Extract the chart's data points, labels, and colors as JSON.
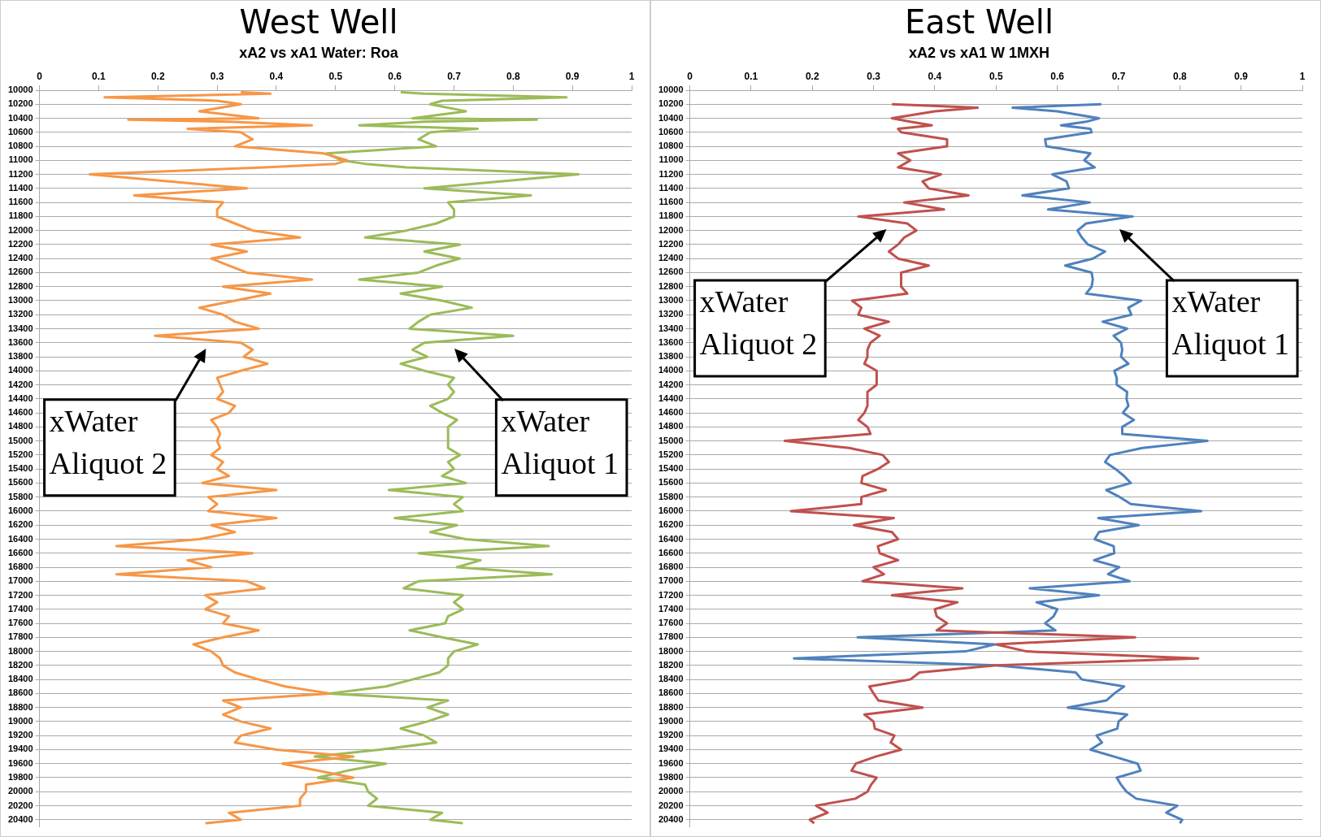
{
  "chart_data": [
    {
      "type": "line",
      "title": "West Well",
      "subtitle": "xA2 vs xA1 Water: Roa",
      "xlim": [
        0,
        1
      ],
      "xticks": [
        0,
        0.1,
        0.2,
        0.3,
        0.4,
        0.5,
        0.6,
        0.7,
        0.8,
        0.9,
        1
      ],
      "ylim": [
        20500,
        10000
      ],
      "yticks": [
        10000,
        10200,
        10400,
        10600,
        10800,
        11000,
        11200,
        11400,
        11600,
        11800,
        12000,
        12200,
        12400,
        12600,
        12800,
        13000,
        13200,
        13400,
        13600,
        13800,
        14000,
        14200,
        14400,
        14600,
        14800,
        15000,
        15200,
        15400,
        15600,
        15800,
        16000,
        16200,
        16400,
        16600,
        16800,
        17000,
        17200,
        17400,
        17600,
        17800,
        18000,
        18200,
        18400,
        18600,
        18800,
        19000,
        19200,
        19400,
        19600,
        19800,
        20000,
        20200,
        20400
      ],
      "grid": "y",
      "legend": false,
      "marker": "none",
      "line_style": "solid",
      "series": [
        {
          "color": "#f79646",
          "x": [
            0.34,
            0.39,
            0.11,
            0.3,
            0.34,
            0.27,
            0.37,
            0.15,
            0.32,
            0.46,
            0.25,
            0.34,
            0.36,
            0.33,
            0.48,
            0.52,
            0.5,
            0.38,
            0.085,
            0.35,
            0.16,
            0.31,
            0.3,
            0.3,
            0.33,
            0.36,
            0.44,
            0.29,
            0.35,
            0.29,
            0.32,
            0.35,
            0.46,
            0.31,
            0.39,
            0.33,
            0.27,
            0.31,
            0.33,
            0.37,
            0.195,
            0.34,
            0.36,
            0.345,
            0.385,
            0.34,
            0.3,
            0.305,
            0.31,
            0.3,
            0.33,
            0.32,
            0.29,
            0.3,
            0.305,
            0.3,
            0.305,
            0.29,
            0.31,
            0.3,
            0.32,
            0.275,
            0.4,
            0.285,
            0.3,
            0.285,
            0.4,
            0.29,
            0.33,
            0.27,
            0.13,
            0.36,
            0.25,
            0.29,
            0.13,
            0.35,
            0.38,
            0.28,
            0.3,
            0.28,
            0.32,
            0.31,
            0.37,
            0.31,
            0.26,
            0.29,
            0.305,
            0.31,
            0.33,
            0.37,
            0.415,
            0.49,
            0.31,
            0.34,
            0.31,
            0.34,
            0.39,
            0.34,
            0.33,
            0.4,
            0.53,
            0.41,
            0.47,
            0.53,
            0.45,
            0.45,
            0.44,
            0.44,
            0.32,
            0.34,
            0.28
          ],
          "values": [
            10030,
            10050,
            10100,
            10150,
            10200,
            10300,
            10400,
            10420,
            10450,
            10500,
            10550,
            10600,
            10700,
            10800,
            10900,
            11000,
            11050,
            11100,
            11200,
            11400,
            11500,
            11600,
            11700,
            11800,
            11900,
            12000,
            12100,
            12200,
            12300,
            12400,
            12500,
            12600,
            12700,
            12800,
            12900,
            13000,
            13100,
            13200,
            13300,
            13400,
            13500,
            13600,
            13700,
            13800,
            13900,
            14000,
            14100,
            14200,
            14300,
            14400,
            14500,
            14600,
            14700,
            14800,
            14900,
            15000,
            15100,
            15200,
            15300,
            15400,
            15500,
            15600,
            15700,
            15800,
            15900,
            16000,
            16100,
            16200,
            16300,
            16400,
            16500,
            16600,
            16700,
            16800,
            16900,
            17000,
            17100,
            17200,
            17300,
            17400,
            17500,
            17600,
            17700,
            17800,
            17900,
            18000,
            18100,
            18200,
            18300,
            18400,
            18500,
            18600,
            18700,
            18800,
            18900,
            19000,
            19100,
            19200,
            19300,
            19400,
            19500,
            19600,
            19700,
            19800,
            19900,
            20000,
            20100,
            20200,
            20300,
            20400,
            20450
          ]
        },
        {
          "color": "#9bbb59",
          "x": [
            0.61,
            0.65,
            0.89,
            0.68,
            0.66,
            0.72,
            0.63,
            0.84,
            0.65,
            0.54,
            0.74,
            0.66,
            0.64,
            0.67,
            0.485,
            0.51,
            0.55,
            0.62,
            0.91,
            0.65,
            0.83,
            0.69,
            0.7,
            0.7,
            0.67,
            0.62,
            0.55,
            0.71,
            0.65,
            0.71,
            0.67,
            0.64,
            0.54,
            0.68,
            0.61,
            0.68,
            0.73,
            0.66,
            0.64,
            0.625,
            0.8,
            0.65,
            0.63,
            0.655,
            0.61,
            0.65,
            0.7,
            0.69,
            0.7,
            0.69,
            0.66,
            0.68,
            0.705,
            0.69,
            0.69,
            0.71,
            0.69,
            0.7,
            0.68,
            0.72,
            0.59,
            0.715,
            0.7,
            0.715,
            0.6,
            0.705,
            0.66,
            0.72,
            0.86,
            0.64,
            0.745,
            0.705,
            0.865,
            0.64,
            0.615,
            0.715,
            0.7,
            0.715,
            0.69,
            0.685,
            0.625,
            0.68,
            0.74,
            0.7,
            0.69,
            0.69,
            0.675,
            0.63,
            0.585,
            0.49,
            0.69,
            0.655,
            0.69,
            0.655,
            0.61,
            0.65,
            0.67,
            0.575,
            0.465,
            0.585,
            0.52,
            0.47,
            0.55,
            0.555,
            0.57,
            0.555,
            0.68,
            0.66,
            0.715
          ],
          "values": [
            10030,
            10050,
            10100,
            10150,
            10200,
            10300,
            10400,
            10420,
            10450,
            10500,
            10550,
            10600,
            10700,
            10800,
            10900,
            11000,
            11050,
            11100,
            11200,
            11400,
            11500,
            11600,
            11700,
            11800,
            11900,
            12000,
            12100,
            12200,
            12300,
            12400,
            12500,
            12600,
            12700,
            12800,
            12900,
            13000,
            13100,
            13200,
            13300,
            13400,
            13500,
            13600,
            13700,
            13800,
            13900,
            14000,
            14100,
            14200,
            14300,
            14400,
            14500,
            14600,
            14700,
            14800,
            15100,
            15200,
            15300,
            15400,
            15500,
            15600,
            15700,
            15800,
            15900,
            16000,
            16100,
            16200,
            16300,
            16400,
            16500,
            16600,
            16700,
            16800,
            16900,
            17000,
            17100,
            17200,
            17300,
            17400,
            17500,
            17600,
            17700,
            17800,
            17900,
            18000,
            18100,
            18200,
            18300,
            18400,
            18500,
            18600,
            18700,
            18800,
            18900,
            19000,
            19100,
            19200,
            19300,
            19400,
            19500,
            19600,
            19700,
            19800,
            19900,
            20000,
            20100,
            20200,
            20300,
            20400,
            20450
          ]
        }
      ],
      "annotations": [
        {
          "text": "xWater Aliquot 2",
          "x": 0.28,
          "y": 13600
        },
        {
          "text": "xWater Aliquot 1",
          "x": 0.7,
          "y": 13600
        }
      ]
    },
    {
      "type": "line",
      "title": "East Well",
      "subtitle": "xA2 vs xA1 W 1MXH",
      "xlim": [
        0,
        1
      ],
      "xticks": [
        0,
        0.1,
        0.2,
        0.3,
        0.4,
        0.5,
        0.6,
        0.7,
        0.8,
        0.9,
        1
      ],
      "ylim": [
        20500,
        10000
      ],
      "yticks": [
        10000,
        10200,
        10400,
        10600,
        10800,
        11000,
        11200,
        11400,
        11600,
        11800,
        12000,
        12200,
        12400,
        12600,
        12800,
        13000,
        13200,
        13400,
        13600,
        13800,
        14000,
        14200,
        14400,
        14600,
        14800,
        15000,
        15200,
        15400,
        15600,
        15800,
        16000,
        16200,
        16400,
        16600,
        16800,
        17000,
        17200,
        17400,
        17600,
        17800,
        18000,
        18200,
        18400,
        18600,
        18800,
        19000,
        19200,
        19400,
        19600,
        19800,
        20000,
        20200,
        20400
      ],
      "grid": "y",
      "legend": false,
      "marker": "none",
      "line_style": "solid",
      "series": [
        {
          "color": "#c0504d",
          "x": [
            0.33,
            0.47,
            0.4,
            0.33,
            0.36,
            0.395,
            0.34,
            0.345,
            0.42,
            0.42,
            0.34,
            0.36,
            0.34,
            0.41,
            0.38,
            0.39,
            0.455,
            0.35,
            0.415,
            0.275,
            0.355,
            0.37,
            0.35,
            0.34,
            0.325,
            0.34,
            0.39,
            0.345,
            0.345,
            0.355,
            0.265,
            0.28,
            0.275,
            0.325,
            0.285,
            0.31,
            0.295,
            0.29,
            0.29,
            0.285,
            0.305,
            0.305,
            0.29,
            0.29,
            0.285,
            0.275,
            0.29,
            0.295,
            0.155,
            0.26,
            0.315,
            0.325,
            0.307,
            0.282,
            0.28,
            0.32,
            0.28,
            0.28,
            0.165,
            0.333,
            0.268,
            0.33,
            0.34,
            0.307,
            0.31,
            0.34,
            0.3,
            0.317,
            0.282,
            0.445,
            0.33,
            0.437,
            0.4,
            0.403,
            0.42,
            0.403,
            0.727,
            0.5,
            0.55,
            0.83,
            0.5,
            0.375,
            0.36,
            0.293,
            0.3,
            0.308,
            0.38,
            0.285,
            0.3,
            0.302,
            0.334,
            0.328,
            0.345,
            0.303,
            0.271,
            0.264,
            0.305,
            0.296,
            0.29,
            0.27,
            0.206,
            0.225,
            0.196,
            0.203
          ],
          "values": [
            10200,
            10250,
            10300,
            10400,
            10450,
            10500,
            10550,
            10600,
            10700,
            10800,
            10900,
            11000,
            11100,
            11200,
            11300,
            11400,
            11500,
            11600,
            11700,
            11800,
            11900,
            12000,
            12100,
            12200,
            12300,
            12400,
            12500,
            12600,
            12800,
            12900,
            13000,
            13100,
            13200,
            13300,
            13400,
            13500,
            13600,
            13700,
            13800,
            13900,
            14000,
            14200,
            14300,
            14500,
            14600,
            14700,
            14800,
            14900,
            15000,
            15100,
            15200,
            15300,
            15400,
            15500,
            15600,
            15700,
            15800,
            15900,
            16000,
            16100,
            16200,
            16300,
            16400,
            16500,
            16600,
            16700,
            16800,
            16900,
            17000,
            17100,
            17200,
            17300,
            17400,
            17500,
            17600,
            17700,
            17800,
            17900,
            18000,
            18100,
            18200,
            18300,
            18400,
            18500,
            18600,
            18700,
            18800,
            18900,
            19000,
            19100,
            19200,
            19300,
            19400,
            19500,
            19600,
            19700,
            19800,
            19900,
            20000,
            20100,
            20200,
            20300,
            20400,
            20450
          ]
        },
        {
          "color": "#4f81bd",
          "x": [
            0.672,
            0.527,
            0.6,
            0.668,
            0.647,
            0.606,
            0.654,
            0.656,
            0.58,
            0.582,
            0.654,
            0.644,
            0.661,
            0.592,
            0.615,
            0.619,
            0.543,
            0.653,
            0.585,
            0.723,
            0.647,
            0.633,
            0.64,
            0.65,
            0.678,
            0.658,
            0.613,
            0.656,
            0.658,
            0.656,
            0.647,
            0.737,
            0.716,
            0.721,
            0.674,
            0.714,
            0.692,
            0.704,
            0.706,
            0.704,
            0.716,
            0.693,
            0.697,
            0.697,
            0.714,
            0.713,
            0.716,
            0.707,
            0.725,
            0.706,
            0.706,
            0.845,
            0.739,
            0.686,
            0.678,
            0.695,
            0.709,
            0.72,
            0.68,
            0.702,
            0.72,
            0.835,
            0.667,
            0.733,
            0.668,
            0.661,
            0.692,
            0.693,
            0.66,
            0.701,
            0.683,
            0.718,
            0.555,
            0.668,
            0.566,
            0.6,
            0.594,
            0.58,
            0.597,
            0.274,
            0.498,
            0.45,
            0.17,
            0.5,
            0.63,
            0.64,
            0.709,
            0.693,
            0.68,
            0.617,
            0.714,
            0.7,
            0.698,
            0.664,
            0.673,
            0.654,
            0.693,
            0.731,
            0.736,
            0.697,
            0.704,
            0.713,
            0.729,
            0.796,
            0.778,
            0.804,
            0.8
          ],
          "values": [
            10200,
            10250,
            10300,
            10400,
            10450,
            10500,
            10550,
            10600,
            10700,
            10800,
            10900,
            11000,
            11100,
            11200,
            11300,
            11400,
            11500,
            11600,
            11700,
            11800,
            11900,
            12000,
            12100,
            12200,
            12300,
            12400,
            12500,
            12600,
            12700,
            12800,
            12900,
            13000,
            13100,
            13200,
            13300,
            13400,
            13500,
            13600,
            13700,
            13800,
            13900,
            14000,
            14100,
            14200,
            14300,
            14400,
            14500,
            14600,
            14700,
            14800,
            14900,
            15000,
            15100,
            15200,
            15300,
            15400,
            15500,
            15600,
            15700,
            15800,
            15900,
            16000,
            16100,
            16200,
            16300,
            16400,
            16500,
            16600,
            16700,
            16800,
            16900,
            17000,
            17100,
            17200,
            17300,
            17400,
            17500,
            17600,
            17700,
            17800,
            17900,
            18000,
            18100,
            18200,
            18300,
            18400,
            18500,
            18600,
            18700,
            18800,
            18900,
            19000,
            19100,
            19200,
            19300,
            19400,
            19500,
            19600,
            19700,
            19800,
            19900,
            20000,
            20100,
            20200,
            20300,
            20400,
            20450
          ]
        }
      ],
      "annotations": [
        {
          "text": "xWater Aliquot 2",
          "x": 0.32,
          "y": 11900
        },
        {
          "text": "xWater Aliquot 1",
          "x": 0.7,
          "y": 11900
        }
      ]
    }
  ]
}
